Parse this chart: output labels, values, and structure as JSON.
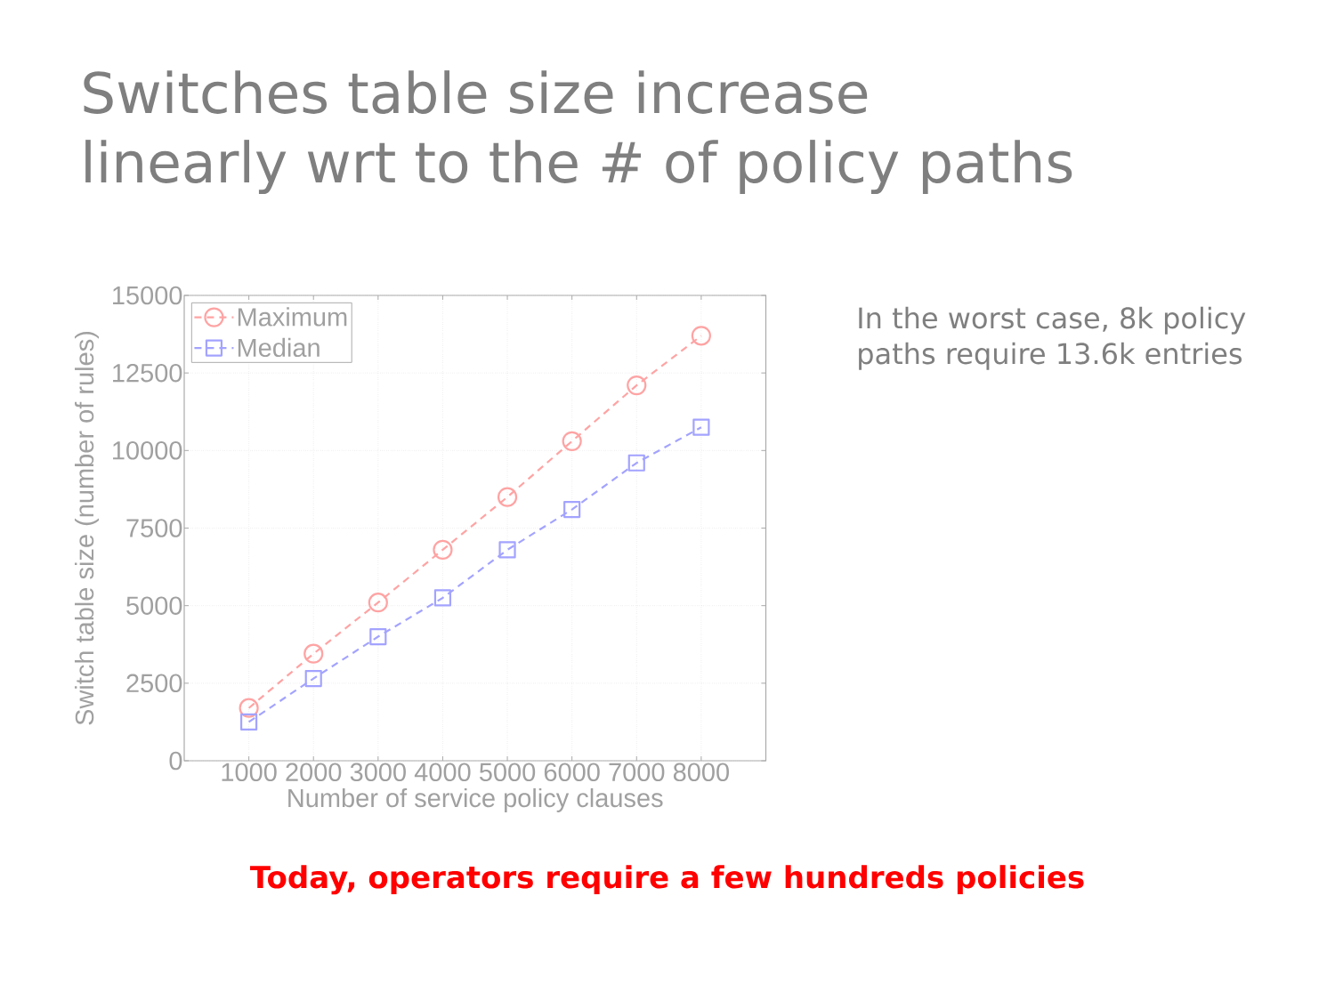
{
  "chart_data": {
    "type": "line",
    "title": "Switches table size increase linearly wrt to the # of policy paths",
    "xlabel": "Number of service policy clauses",
    "ylabel": "Switch table size (number of rules)",
    "annotations": [
      "In the worst case, 8k policy paths require 13.6k entries",
      "Today, operators require a few hundreds policies"
    ],
    "x": [
      1000,
      2000,
      3000,
      4000,
      5000,
      6000,
      7000,
      8000
    ],
    "series": [
      {
        "name": "Maximum",
        "color": "#ffa3a3",
        "marker": "circle",
        "values": [
          1700,
          3450,
          5100,
          6800,
          8500,
          10300,
          12100,
          13700
        ]
      },
      {
        "name": "Median",
        "color": "#a3a3ff",
        "marker": "square",
        "values": [
          1250,
          2650,
          4000,
          5250,
          6800,
          8100,
          9600,
          10750
        ]
      }
    ],
    "xlim": [
      0,
      9000
    ],
    "ylim": [
      0,
      15000
    ],
    "xticks": [
      1000,
      2000,
      3000,
      4000,
      5000,
      6000,
      7000,
      8000
    ],
    "yticks": [
      0,
      2500,
      5000,
      7500,
      10000,
      12500,
      15000
    ],
    "grid": true,
    "legend": "top left",
    "line_style": "dashed"
  }
}
